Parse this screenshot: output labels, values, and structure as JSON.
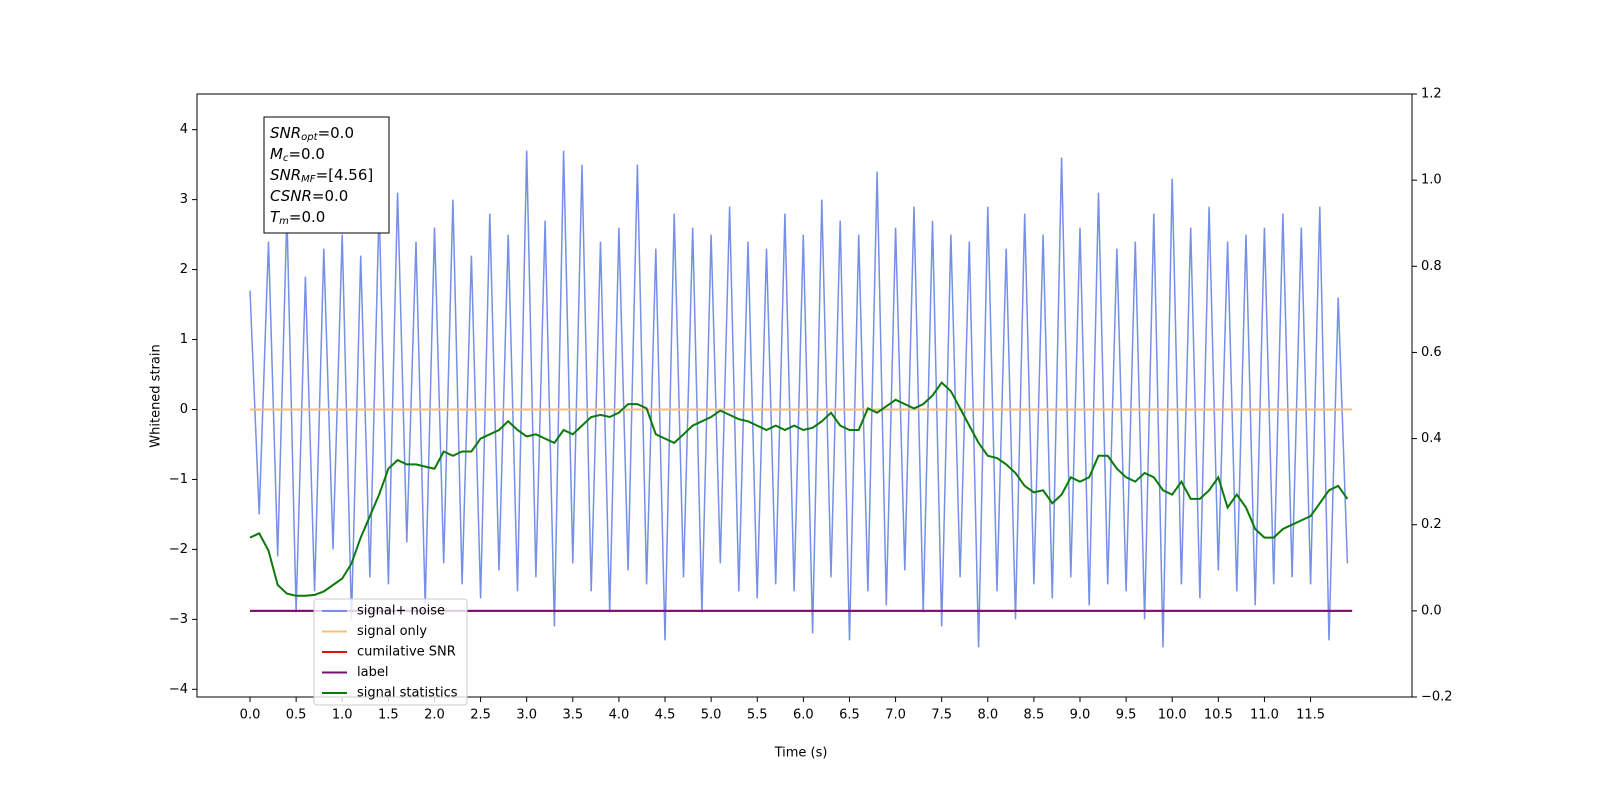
{
  "chart_data": {
    "type": "line",
    "xlabel": "Time (s)",
    "ylabel": "Whitened strain",
    "x": [
      0.0,
      0.1,
      0.2,
      0.3,
      0.4,
      0.5,
      0.6,
      0.7,
      0.8,
      0.9,
      1.0,
      1.1,
      1.2,
      1.3,
      1.4,
      1.5,
      1.6,
      1.7,
      1.8,
      1.9,
      2.0,
      2.1,
      2.2,
      2.3,
      2.4,
      2.5,
      2.6,
      2.7,
      2.8,
      2.9,
      3.0,
      3.1,
      3.2,
      3.3,
      3.4,
      3.5,
      3.6,
      3.7,
      3.8,
      3.9,
      4.0,
      4.1,
      4.2,
      4.3,
      4.4,
      4.5,
      4.6,
      4.7,
      4.8,
      4.9,
      5.0,
      5.1,
      5.2,
      5.3,
      5.4,
      5.5,
      5.6,
      5.7,
      5.8,
      5.9,
      6.0,
      6.1,
      6.2,
      6.3,
      6.4,
      6.5,
      6.6,
      6.7,
      6.8,
      6.9,
      7.0,
      7.1,
      7.2,
      7.3,
      7.4,
      7.5,
      7.6,
      7.7,
      7.8,
      7.9,
      8.0,
      8.1,
      8.2,
      8.3,
      8.4,
      8.5,
      8.6,
      8.7,
      8.8,
      8.9,
      9.0,
      9.1,
      9.2,
      9.3,
      9.4,
      9.5,
      9.6,
      9.7,
      9.8,
      9.9,
      10.0,
      10.1,
      10.2,
      10.3,
      10.4,
      10.5,
      10.6,
      10.7,
      10.8,
      10.9,
      11.0,
      11.1,
      11.2,
      11.3,
      11.4,
      11.5,
      11.6,
      11.7,
      11.8,
      11.9
    ],
    "series": [
      {
        "name": "signal+ noise",
        "color": "#7590e6",
        "values": [
          1.7,
          -1.5,
          2.4,
          -2.1,
          2.8,
          -2.9,
          1.9,
          -2.6,
          2.3,
          -2.0,
          2.5,
          -3.0,
          2.2,
          -2.4,
          2.9,
          -2.5,
          3.1,
          -1.9,
          2.4,
          -2.8,
          2.6,
          -2.2,
          3.0,
          -2.5,
          2.2,
          -2.7,
          2.8,
          -2.3,
          2.5,
          -2.6,
          3.7,
          -2.4,
          2.7,
          -3.1,
          3.7,
          -2.2,
          3.5,
          -2.6,
          2.4,
          -2.9,
          2.6,
          -2.3,
          3.5,
          -2.5,
          2.3,
          -3.3,
          2.8,
          -2.4,
          2.6,
          -2.9,
          2.5,
          -2.2,
          2.9,
          -2.6,
          2.4,
          -2.7,
          2.3,
          -2.5,
          2.8,
          -2.6,
          2.5,
          -3.2,
          3.0,
          -2.4,
          2.7,
          -3.3,
          2.5,
          -2.6,
          3.4,
          -2.8,
          2.6,
          -2.3,
          2.9,
          -2.9,
          2.7,
          -3.1,
          2.5,
          -2.4,
          2.4,
          -3.4,
          2.9,
          -2.6,
          2.3,
          -3.0,
          2.8,
          -2.5,
          2.5,
          -2.7,
          3.6,
          -2.4,
          2.6,
          -2.8,
          3.1,
          -2.5,
          2.3,
          -2.6,
          2.4,
          -3.0,
          2.8,
          -3.4,
          3.3,
          -2.5,
          2.6,
          -2.7,
          2.9,
          -2.3,
          2.4,
          -2.6,
          2.5,
          -2.8,
          2.6,
          -2.5,
          2.8,
          -2.4,
          2.6,
          -2.5,
          2.9,
          -3.3,
          1.6,
          -2.2
        ]
      },
      {
        "name": "signal only",
        "color": "#f5c07a",
        "x": [
          0.0,
          11.95
        ],
        "values": [
          0,
          0
        ]
      },
      {
        "name": "cumilative SNR",
        "color": "#e01010",
        "axis": "y2",
        "x": [
          0.0,
          11.95
        ],
        "values": [
          0,
          0
        ]
      },
      {
        "name": "label",
        "color": "#7a0f7a",
        "axis": "y2",
        "x": [
          0.0,
          11.95
        ],
        "values": [
          0,
          0
        ]
      },
      {
        "name": "signal statistics",
        "color": "#0a7a0a",
        "axis": "y2",
        "values": [
          0.17,
          0.18,
          0.14,
          0.06,
          0.04,
          0.035,
          0.035,
          0.037,
          0.045,
          0.06,
          0.075,
          0.11,
          0.17,
          0.22,
          0.27,
          0.33,
          0.35,
          0.34,
          0.34,
          0.335,
          0.33,
          0.37,
          0.36,
          0.37,
          0.37,
          0.4,
          0.41,
          0.42,
          0.44,
          0.42,
          0.405,
          0.41,
          0.4,
          0.39,
          0.42,
          0.41,
          0.43,
          0.45,
          0.455,
          0.45,
          0.46,
          0.48,
          0.48,
          0.47,
          0.41,
          0.4,
          0.39,
          0.41,
          0.43,
          0.44,
          0.45,
          0.465,
          0.455,
          0.445,
          0.44,
          0.43,
          0.42,
          0.43,
          0.42,
          0.43,
          0.42,
          0.425,
          0.44,
          0.46,
          0.43,
          0.42,
          0.42,
          0.47,
          0.46,
          0.475,
          0.49,
          0.48,
          0.47,
          0.48,
          0.5,
          0.53,
          0.51,
          0.47,
          0.43,
          0.39,
          0.36,
          0.355,
          0.34,
          0.32,
          0.29,
          0.275,
          0.28,
          0.25,
          0.27,
          0.31,
          0.3,
          0.31,
          0.36,
          0.36,
          0.33,
          0.31,
          0.3,
          0.32,
          0.31,
          0.28,
          0.27,
          0.3,
          0.26,
          0.26,
          0.28,
          0.31,
          0.24,
          0.27,
          0.24,
          0.19,
          0.17,
          0.17,
          0.19,
          0.2,
          0.21,
          0.22,
          0.25,
          0.28,
          0.29,
          0.26
        ]
      }
    ],
    "xlim": [
      -0.575,
      12.6
    ],
    "xticks": [
      {
        "value": 0,
        "label": "0.0"
      },
      0.5,
      {
        "value": 1,
        "label": "1.0"
      },
      1.5,
      {
        "value": 2,
        "label": "2.0"
      },
      2.5,
      {
        "value": 3,
        "label": "3.0"
      },
      3.5,
      {
        "value": 4,
        "label": "4.0"
      },
      4.5,
      {
        "value": 5,
        "label": "5.0"
      },
      5.5,
      {
        "value": 6,
        "label": "6.0"
      },
      6.5,
      {
        "value": 7,
        "label": "7.0"
      },
      7.5,
      {
        "value": 8,
        "label": "8.0"
      },
      8.5,
      {
        "value": 9,
        "label": "9.0"
      },
      9.5,
      {
        "value": 10,
        "label": "10.0"
      },
      10.5,
      {
        "value": 11,
        "label": "11.0"
      },
      11.5
    ],
    "ylim": [
      -4.11,
      4.51
    ],
    "yticks": [
      {
        "value": -4,
        "label": "−4"
      },
      {
        "value": -3,
        "label": "−3"
      },
      {
        "value": -2,
        "label": "−2"
      },
      {
        "value": -1,
        "label": "−1"
      },
      0,
      1,
      2,
      3,
      4
    ],
    "y2lim": [
      -0.2,
      1.2
    ],
    "y2ticks": [
      {
        "value": -0.2,
        "label": "−0.2"
      },
      {
        "value": 0,
        "label": "0.0"
      },
      0.2,
      0.4,
      0.6,
      0.8,
      {
        "value": 1,
        "label": "1.0"
      },
      1.2
    ],
    "legend": "lower left",
    "annotations": [
      {
        "symbol": "SNR",
        "subscript": "opt",
        "text": "=0.0"
      },
      {
        "symbol": "M",
        "subscript": "c",
        "text": "=0.0"
      },
      {
        "symbol": "SNR",
        "subscript": "MF",
        "text": "=[4.56]"
      },
      {
        "symbol": "CSNR",
        "text": "=0.0"
      },
      {
        "symbol": "T",
        "subscript": "m",
        "text": "=0.0"
      }
    ]
  }
}
